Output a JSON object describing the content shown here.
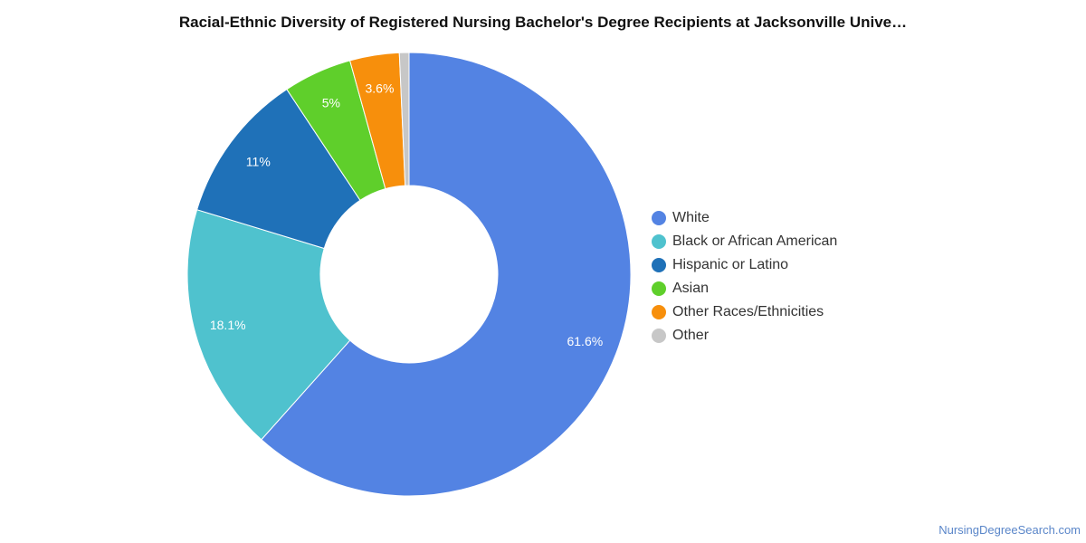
{
  "chart_data": {
    "type": "pie",
    "style": "donut",
    "title": "Racial-Ethnic Diversity of Registered Nursing Bachelor's Degree Recipients at Jacksonville Unive…",
    "slices": [
      {
        "label": "White",
        "value": 61.6,
        "data_label": "61.6%",
        "color": "#5383e3"
      },
      {
        "label": "Black or African American",
        "value": 18.1,
        "data_label": "18.1%",
        "color": "#4fc2ce"
      },
      {
        "label": "Hispanic or Latino",
        "value": 11,
        "data_label": "11%",
        "color": "#1f71b8"
      },
      {
        "label": "Asian",
        "value": 5,
        "data_label": "5%",
        "color": "#5fcf2b"
      },
      {
        "label": "Other Races/Ethnicities",
        "value": 3.6,
        "data_label": "3.6%",
        "color": "#f78f0c"
      },
      {
        "label": "Other",
        "value": 0.7,
        "data_label": "",
        "color": "#c7c7c7"
      }
    ],
    "legend_position": "right"
  },
  "source": "NursingDegreeSearch.com"
}
